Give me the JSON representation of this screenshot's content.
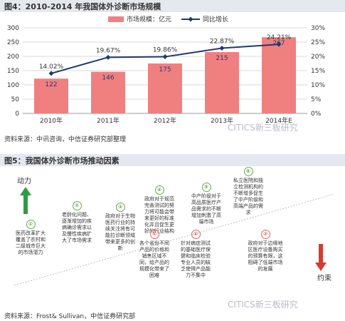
{
  "figure1": {
    "title": "图4：2010-2014 年我国体外诊断市场规模",
    "source": "资料来源：中讯咨询，中信证券研究部整理"
  },
  "figure2": {
    "title": "图5：我国体外诊断市场推动因素",
    "source": "资料来源：Frost& Sullivan，中信证券研究部",
    "labels": {
      "drivers": "动力",
      "constraints": "约束"
    },
    "colors": {
      "drivers": "#2e9b45",
      "constraints": "#d63b2f"
    },
    "drivers": [
      {
        "num": "①",
        "text": "医药改革扩大覆盖了农村和二级城市巨大的市场潜力"
      },
      {
        "num": "②",
        "text": "老龄化问题、逐渐增加的疾病确诊需求以及慢性疾病扩大了市场需求"
      },
      {
        "num": "③",
        "text": "政府对于生物医药行业的持续关注将有可能拉诊断领域带来更多的创新"
      },
      {
        "num": "④",
        "text": "政府对于规范完善测试的努力将可能会带来更好的标准化并且促生更好的行业结构"
      },
      {
        "num": "⑤",
        "text": "中产阶级对于高品质医疗产品需求的不断增加刺激了高端市场"
      },
      {
        "num": "⑥",
        "text": "私立医院和独立检测机构的不断增多促生了中产阶级和高端产品的需求"
      }
    ],
    "constraints": [
      {
        "num": "①",
        "text": "各个省份不同产品的价格和销售区域不同，给产品的规模化带来了困难"
      },
      {
        "num": "②",
        "text": "针对病症测试的基础医疗保健和临床检验专业人员的缺乏使得产品能力不集中"
      },
      {
        "num": "③",
        "text": "政府对于边缘地区医疗设备购买的预算有限，这阻碍了低端市场的发展"
      }
    ]
  },
  "watermark": "CITICS新三板研究",
  "chart_data": {
    "type": "bar",
    "categories": [
      "2010年",
      "2011年",
      "2012年",
      "2013年",
      "2014年E"
    ],
    "series": [
      {
        "name": "市场规模：亿元",
        "type": "bar",
        "axis": "left",
        "color": "#f08080",
        "values": [
          122,
          146,
          175,
          215,
          267
        ]
      },
      {
        "name": "同比增长",
        "type": "line",
        "axis": "right",
        "color": "#1f3a6e",
        "values": [
          14.02,
          19.67,
          19.86,
          22.87,
          24.21
        ],
        "labels": [
          "14.02%",
          "19.67%",
          "19.86%",
          "22.87%",
          "24.21%"
        ]
      }
    ],
    "yleft": {
      "lim": [
        0,
        300
      ],
      "ticks": [
        "0",
        "50",
        "100",
        "150",
        "200",
        "250",
        "300"
      ]
    },
    "yright": {
      "lim": [
        0,
        30
      ],
      "ticks": [
        "0%",
        "5%",
        "10%",
        "15%",
        "20%",
        "25%",
        "30%"
      ]
    },
    "grid": true,
    "legend": "top"
  }
}
